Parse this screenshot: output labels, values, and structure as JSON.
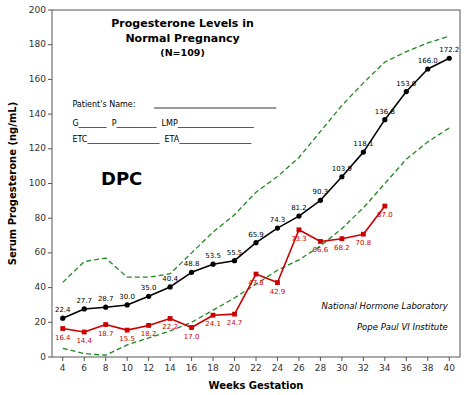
{
  "chart_data": {
    "type": "line",
    "title": [
      "Progesterone Levels in",
      "Normal Pregnancy"
    ],
    "subtitle": "(N=109)",
    "xlabel": "Weeks Gestation",
    "ylabel": "Serum Progesterone (ng/mL)",
    "x": [
      4,
      6,
      8,
      10,
      12,
      14,
      16,
      18,
      20,
      22,
      24,
      26,
      28,
      30,
      32,
      34,
      36,
      38,
      40
    ],
    "xlim": [
      3,
      41
    ],
    "xticks": [
      4,
      6,
      8,
      10,
      12,
      14,
      16,
      18,
      20,
      22,
      24,
      26,
      28,
      30,
      32,
      34,
      36,
      38,
      40
    ],
    "ylim": [
      0,
      200
    ],
    "yticks": [
      0,
      20,
      40,
      60,
      80,
      100,
      120,
      140,
      160,
      180,
      200
    ],
    "grid": false,
    "series": [
      {
        "color": "#228822",
        "line_style": "dashed",
        "marker": "none",
        "values": [
          43,
          55,
          57,
          46,
          46,
          48,
          60,
          72,
          82,
          95,
          104,
          115,
          130,
          145,
          158,
          170,
          176,
          181,
          185
        ]
      },
      {
        "color": "#228822",
        "line_style": "dashed",
        "marker": "none",
        "values": [
          5,
          2,
          1,
          7,
          11,
          15,
          20,
          27,
          34,
          42,
          50,
          56,
          64,
          74,
          86,
          100,
          114,
          124,
          132
        ]
      },
      {
        "color": "#000000",
        "line_style": "solid",
        "marker": "circle",
        "data_labels": true,
        "values": [
          22.4,
          27.7,
          28.7,
          30.0,
          35.0,
          40.4,
          48.8,
          53.5,
          55.5,
          65.9,
          74.3,
          81.2,
          90.3,
          103.9,
          118.1,
          136.8,
          153.0,
          166.0,
          172.2
        ],
        "value_labels": [
          "22.4",
          "27.7",
          "28.7",
          "30.0",
          "35.0",
          "40.4",
          "48.8",
          "53.5",
          "55.5",
          "65.9",
          "74.3",
          "81.2",
          "90.3",
          "103.9",
          "118.1",
          "136.8",
          "153.0",
          "166.0",
          "172.2"
        ]
      },
      {
        "color": "#cc0000",
        "line_style": "solid",
        "marker": "square",
        "data_labels": true,
        "values": [
          16.4,
          14.4,
          18.7,
          15.5,
          18.2,
          22.2,
          17.0,
          24.1,
          24.7,
          47.8,
          42.9,
          73.3,
          66.6,
          68.2,
          70.8,
          87.0,
          null,
          null,
          null
        ],
        "value_labels": [
          "16.4",
          "14.4",
          "18.7",
          "15.5",
          "18.2",
          "22.2",
          "17.0",
          "24.1",
          "24.7",
          "47.8",
          "42.9",
          "73.3",
          "66.6",
          "68.2",
          "70.8",
          "87.0",
          null,
          null,
          null
        ]
      }
    ],
    "annotations": [
      "Patient's Name:",
      "G_______  P__________  LMP___________________",
      "ETC__________________  ETA__________________",
      "DPC",
      "National Hormone Laboratory",
      "Pope Paul VI Institute"
    ]
  }
}
